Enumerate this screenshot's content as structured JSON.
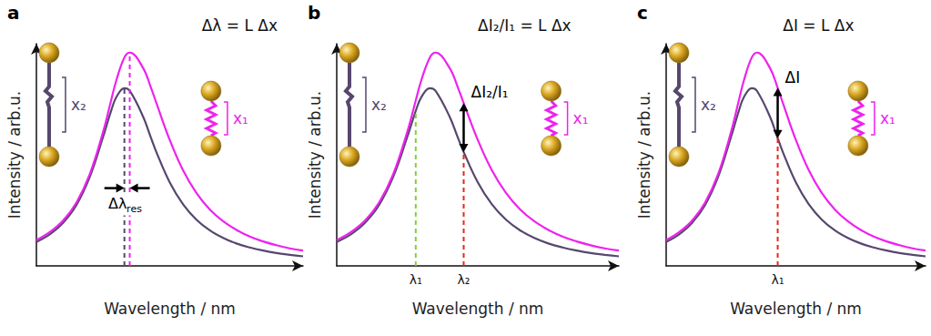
{
  "chart_data": [
    {
      "type": "line",
      "panel_label": "a",
      "equation": "Δλ = L Δx",
      "x_label": "Wavelength / nm",
      "y_label": "Intensity / arb.u.",
      "xlim": [
        0,
        100
      ],
      "ylim": [
        0,
        100
      ],
      "xticks": [],
      "yticks": [],
      "tick_labels": false,
      "grid": false,
      "x": [
        0,
        5,
        10,
        15,
        20,
        25,
        28,
        30,
        33,
        35,
        40,
        43,
        45,
        50,
        55,
        60,
        65,
        70,
        75,
        80,
        85,
        90,
        95,
        100
      ],
      "series": [
        {
          "label": "x₂",
          "color": "#56476e",
          "values": [
            10.8,
            14.2,
            19.4,
            27.4,
            40.0,
            58.0,
            69.7,
            76.0,
            80.0,
            78.8,
            67.2,
            57.5,
            51.2,
            37.6,
            27.7,
            20.8,
            16.0,
            12.6,
            10.1,
            8.3,
            6.9,
            5.8,
            5.0,
            4.3
          ]
        },
        {
          "label": "x₁",
          "color": "#ee22ee",
          "values": [
            11.6,
            15.2,
            20.4,
            28.5,
            41.2,
            60.3,
            74.4,
            83.6,
            93.8,
            96.0,
            89.1,
            80.1,
            73.3,
            56.7,
            43.0,
            32.8,
            25.4,
            20.1,
            16.2,
            13.2,
            11.0,
            9.3,
            7.9,
            6.9
          ]
        }
      ],
      "vlines": [
        {
          "x": 33,
          "color": "#56476e"
        },
        {
          "x": 35,
          "color": "#ee22ee"
        }
      ],
      "delta": {
        "x": [
          33,
          35
        ],
        "label": "Δλ",
        "label_sub": "res"
      }
    },
    {
      "type": "line",
      "panel_label": "b",
      "equation": "ΔI₂/I₁ = L Δx",
      "x_label": "Wavelength / nm",
      "y_label": "Intensity / arb.u.",
      "xlim": [
        0,
        100
      ],
      "ylim": [
        0,
        100
      ],
      "xticks": [
        {
          "value": 28,
          "label": "λ₁"
        },
        {
          "value": 45,
          "label": "λ₂"
        }
      ],
      "yticks": [],
      "tick_labels": "x",
      "grid": false,
      "x": [
        0,
        5,
        10,
        15,
        20,
        25,
        28,
        30,
        33,
        35,
        40,
        43,
        45,
        50,
        55,
        60,
        65,
        70,
        75,
        80,
        85,
        90,
        95,
        100
      ],
      "series": [
        {
          "label": "x₂",
          "color": "#56476e",
          "values": [
            10.8,
            14.2,
            19.4,
            27.4,
            40.0,
            58.0,
            69.7,
            76.0,
            80.0,
            78.8,
            67.2,
            57.5,
            51.2,
            37.6,
            27.7,
            20.8,
            16.0,
            12.6,
            10.1,
            8.3,
            6.9,
            5.8,
            5.0,
            4.3
          ]
        },
        {
          "label": "x₁",
          "color": "#ee22ee",
          "values": [
            11.6,
            15.2,
            20.4,
            28.5,
            41.2,
            60.3,
            74.4,
            83.6,
            93.8,
            96.0,
            89.1,
            80.1,
            73.3,
            56.7,
            43.0,
            32.8,
            25.4,
            20.1,
            16.2,
            13.2,
            11.0,
            9.3,
            7.9,
            6.9
          ]
        }
      ],
      "vlines": [
        {
          "x": 28,
          "color": "#7fd13b"
        },
        {
          "x": 45,
          "color": "#e8271c"
        }
      ],
      "delta": {
        "x": 45,
        "label": "ΔI₂/I₁"
      }
    },
    {
      "type": "line",
      "panel_label": "c",
      "equation": "ΔI = L Δx",
      "x_label": "Wavelength / nm",
      "y_label": "Intensity / arb.u.",
      "xlim": [
        0,
        100
      ],
      "ylim": [
        0,
        100
      ],
      "xticks": [
        {
          "value": 43,
          "label": "λ₁"
        }
      ],
      "yticks": [],
      "tick_labels": "x",
      "grid": false,
      "x": [
        0,
        5,
        10,
        15,
        20,
        25,
        28,
        30,
        33,
        35,
        40,
        43,
        45,
        50,
        55,
        60,
        65,
        70,
        75,
        80,
        85,
        90,
        95,
        100
      ],
      "series": [
        {
          "label": "x₂",
          "color": "#56476e",
          "values": [
            10.8,
            14.2,
            19.4,
            27.4,
            40.0,
            58.0,
            69.7,
            76.0,
            80.0,
            78.8,
            67.2,
            57.5,
            51.2,
            37.6,
            27.7,
            20.8,
            16.0,
            12.6,
            10.1,
            8.3,
            6.9,
            5.8,
            5.0,
            4.3
          ]
        },
        {
          "label": "x₁",
          "color": "#ee22ee",
          "values": [
            11.6,
            15.2,
            20.4,
            28.5,
            41.2,
            60.3,
            74.4,
            83.6,
            93.8,
            96.0,
            89.1,
            80.1,
            73.3,
            56.7,
            43.0,
            32.8,
            25.4,
            20.1,
            16.2,
            13.2,
            11.0,
            9.3,
            7.9,
            6.9
          ]
        }
      ],
      "vlines": [
        {
          "x": 43,
          "color": "#e8271c"
        }
      ],
      "delta": {
        "x": 43,
        "label": "ΔI"
      }
    }
  ]
}
